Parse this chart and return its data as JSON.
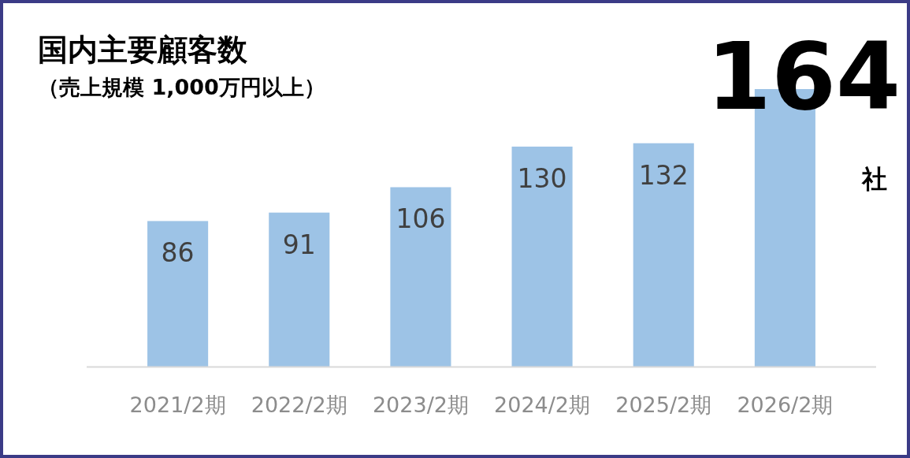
{
  "chart_data": {
    "type": "bar",
    "title": "国内主要顧客数",
    "subtitle": "（売上規模 1,000万円以上）",
    "categories": [
      "2021/2期",
      "2022/2期",
      "2023/2期",
      "2024/2期",
      "2025/2期",
      "2026/2期"
    ],
    "values": [
      86,
      91,
      106,
      130,
      132,
      164
    ],
    "color": "#9dc3e6",
    "data_labels": true,
    "annotations": [
      "社"
    ]
  }
}
